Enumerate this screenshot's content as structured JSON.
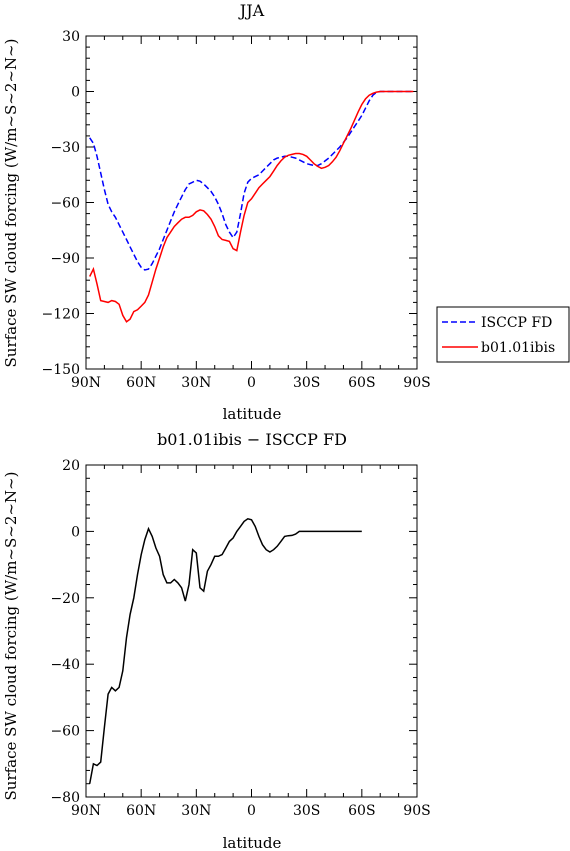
{
  "chart_data": [
    {
      "type": "line",
      "title": "JJA",
      "xlabel": "latitude",
      "ylabel": "Surface SW cloud forcing (W/m~S~2~N~)",
      "xlim": [
        90,
        -90
      ],
      "ylim": [
        -150,
        30
      ],
      "xticks": [
        90,
        60,
        30,
        0,
        -30,
        -60,
        -90
      ],
      "xtick_labels": [
        "90N",
        "60N",
        "30N",
        "0",
        "30S",
        "60S",
        "90S"
      ],
      "yticks": [
        30,
        0,
        -30,
        -60,
        -90,
        -120,
        -150
      ],
      "ytick_labels": [
        "30",
        "0",
        "−30",
        "−60",
        "−90",
        "−120",
        "−150"
      ],
      "legend": {
        "placement": "right-outside"
      },
      "series": [
        {
          "name": "ISCCP FD",
          "color": "#0000ff",
          "dash": "dashed",
          "points": [
            [
              88,
              -25
            ],
            [
              86,
              -28
            ],
            [
              84,
              -35
            ],
            [
              82,
              -44
            ],
            [
              80,
              -53
            ],
            [
              78,
              -61
            ],
            [
              76,
              -65
            ],
            [
              74,
              -68
            ],
            [
              72,
              -72
            ],
            [
              70,
              -76
            ],
            [
              68,
              -80
            ],
            [
              66,
              -84
            ],
            [
              64,
              -88
            ],
            [
              62,
              -92
            ],
            [
              60,
              -95
            ],
            [
              58,
              -96.5
            ],
            [
              56,
              -96
            ],
            [
              54,
              -93
            ],
            [
              52,
              -89
            ],
            [
              50,
              -85
            ],
            [
              48,
              -80
            ],
            [
              46,
              -75
            ],
            [
              44,
              -70
            ],
            [
              42,
              -65
            ],
            [
              40,
              -61
            ],
            [
              38,
              -57
            ],
            [
              36,
              -53
            ],
            [
              34,
              -50
            ],
            [
              32,
              -49
            ],
            [
              30,
              -48
            ],
            [
              28,
              -48.5
            ],
            [
              26,
              -50
            ],
            [
              24,
              -52
            ],
            [
              22,
              -54
            ],
            [
              20,
              -57
            ],
            [
              18,
              -61
            ],
            [
              16,
              -66
            ],
            [
              14,
              -72
            ],
            [
              12,
              -76
            ],
            [
              10,
              -79
            ],
            [
              8,
              -76
            ],
            [
              6,
              -66
            ],
            [
              4,
              -55
            ],
            [
              2,
              -49
            ],
            [
              0,
              -47
            ],
            [
              -2,
              -46
            ],
            [
              -4,
              -45
            ],
            [
              -6,
              -43
            ],
            [
              -8,
              -41
            ],
            [
              -10,
              -39
            ],
            [
              -12,
              -37
            ],
            [
              -14,
              -36
            ],
            [
              -16,
              -35.5
            ],
            [
              -18,
              -35
            ],
            [
              -20,
              -35
            ],
            [
              -22,
              -35.5
            ],
            [
              -24,
              -36
            ],
            [
              -26,
              -37
            ],
            [
              -28,
              -38
            ],
            [
              -30,
              -39
            ],
            [
              -32,
              -39.5
            ],
            [
              -34,
              -40
            ],
            [
              -36,
              -40
            ],
            [
              -38,
              -39
            ],
            [
              -40,
              -37.5
            ],
            [
              -42,
              -36
            ],
            [
              -44,
              -34
            ],
            [
              -46,
              -32
            ],
            [
              -48,
              -30
            ],
            [
              -50,
              -27.5
            ],
            [
              -52,
              -25
            ],
            [
              -54,
              -22
            ],
            [
              -56,
              -19
            ],
            [
              -58,
              -16
            ],
            [
              -60,
              -13
            ],
            [
              -62,
              -9
            ],
            [
              -64,
              -5
            ],
            [
              -66,
              -2
            ],
            [
              -68,
              -0.5
            ],
            [
              -70,
              0
            ],
            [
              -72,
              0
            ],
            [
              -76,
              0
            ],
            [
              -80,
              0
            ],
            [
              -84,
              0
            ],
            [
              -88,
              0
            ]
          ]
        },
        {
          "name": "b01.01ibis",
          "color": "#ff0000",
          "dash": "solid",
          "points": [
            [
              88,
              -100
            ],
            [
              86,
              -96
            ],
            [
              84,
              -104
            ],
            [
              82,
              -113
            ],
            [
              80,
              -113.5
            ],
            [
              78,
              -114
            ],
            [
              76,
              -113
            ],
            [
              74,
              -113.5
            ],
            [
              72,
              -115
            ],
            [
              70,
              -121
            ],
            [
              68,
              -124.5
            ],
            [
              66,
              -123
            ],
            [
              64,
              -119
            ],
            [
              62,
              -118
            ],
            [
              60,
              -116
            ],
            [
              58,
              -114
            ],
            [
              56,
              -110
            ],
            [
              54,
              -103
            ],
            [
              52,
              -96
            ],
            [
              50,
              -90
            ],
            [
              48,
              -84
            ],
            [
              46,
              -79
            ],
            [
              44,
              -76
            ],
            [
              42,
              -73
            ],
            [
              40,
              -71
            ],
            [
              38,
              -69
            ],
            [
              36,
              -68
            ],
            [
              34,
              -68
            ],
            [
              32,
              -67
            ],
            [
              30,
              -65
            ],
            [
              28,
              -64
            ],
            [
              26,
              -64.5
            ],
            [
              24,
              -66.5
            ],
            [
              22,
              -69
            ],
            [
              20,
              -73
            ],
            [
              18,
              -78
            ],
            [
              16,
              -80
            ],
            [
              14,
              -80.5
            ],
            [
              12,
              -81
            ],
            [
              10,
              -85
            ],
            [
              8,
              -86
            ],
            [
              6,
              -76
            ],
            [
              4,
              -67
            ],
            [
              2,
              -60
            ],
            [
              0,
              -58
            ],
            [
              -2,
              -55
            ],
            [
              -4,
              -52
            ],
            [
              -6,
              -50
            ],
            [
              -8,
              -48
            ],
            [
              -10,
              -46
            ],
            [
              -12,
              -43
            ],
            [
              -14,
              -40
            ],
            [
              -16,
              -37.5
            ],
            [
              -18,
              -35.5
            ],
            [
              -20,
              -34.5
            ],
            [
              -22,
              -34
            ],
            [
              -24,
              -33.5
            ],
            [
              -26,
              -33.5
            ],
            [
              -28,
              -34
            ],
            [
              -30,
              -35
            ],
            [
              -32,
              -37
            ],
            [
              -34,
              -39
            ],
            [
              -36,
              -40.5
            ],
            [
              -38,
              -41.5
            ],
            [
              -40,
              -41
            ],
            [
              -42,
              -40
            ],
            [
              -44,
              -38
            ],
            [
              -46,
              -35.5
            ],
            [
              -48,
              -32
            ],
            [
              -50,
              -28
            ],
            [
              -52,
              -24
            ],
            [
              -54,
              -20
            ],
            [
              -56,
              -15.5
            ],
            [
              -58,
              -11
            ],
            [
              -60,
              -7
            ],
            [
              -62,
              -4
            ],
            [
              -64,
              -2
            ],
            [
              -66,
              -1
            ],
            [
              -68,
              -0.3
            ],
            [
              -70,
              0
            ],
            [
              -72,
              0
            ],
            [
              -76,
              0
            ],
            [
              -80,
              0
            ],
            [
              -84,
              0
            ],
            [
              -88,
              0
            ]
          ]
        }
      ]
    },
    {
      "type": "line",
      "title": "b01.01ibis − ISCCP FD",
      "xlabel": "latitude",
      "ylabel": "Surface SW cloud forcing (W/m~S~2~N~)",
      "xlim": [
        90,
        -90
      ],
      "ylim": [
        -80,
        20
      ],
      "xticks": [
        90,
        60,
        30,
        0,
        -30,
        -60,
        -90
      ],
      "xtick_labels": [
        "90N",
        "60N",
        "30N",
        "0",
        "30S",
        "60S",
        "90S"
      ],
      "yticks": [
        20,
        0,
        -20,
        -40,
        -60,
        -80
      ],
      "ytick_labels": [
        "20",
        "0",
        "−20",
        "−40",
        "−60",
        "−80"
      ],
      "series": [
        {
          "color": "#000000",
          "dash": "solid",
          "points": [
            [
              88,
              -76
            ],
            [
              86,
              -70
            ],
            [
              84,
              -70.5
            ],
            [
              82,
              -69.5
            ],
            [
              80,
              -59
            ],
            [
              78,
              -49
            ],
            [
              76,
              -47
            ],
            [
              74,
              -48
            ],
            [
              72,
              -47
            ],
            [
              70,
              -42
            ],
            [
              68,
              -32
            ],
            [
              66,
              -25
            ],
            [
              64,
              -20
            ],
            [
              62,
              -13
            ],
            [
              60,
              -7
            ],
            [
              58,
              -2.5
            ],
            [
              56,
              0.8
            ],
            [
              54,
              -1.5
            ],
            [
              52,
              -5
            ],
            [
              50,
              -7.5
            ],
            [
              48,
              -13
            ],
            [
              46,
              -15.5
            ],
            [
              44,
              -15.5
            ],
            [
              42,
              -14.5
            ],
            [
              40,
              -15.5
            ],
            [
              38,
              -17
            ],
            [
              36,
              -21
            ],
            [
              34,
              -16
            ],
            [
              32,
              -5.5
            ],
            [
              30,
              -6.5
            ],
            [
              28,
              -17
            ],
            [
              26,
              -18
            ],
            [
              24,
              -12
            ],
            [
              22,
              -10
            ],
            [
              20,
              -7.5
            ],
            [
              18,
              -7.5
            ],
            [
              16,
              -7
            ],
            [
              14,
              -5
            ],
            [
              12,
              -3
            ],
            [
              10,
              -2
            ],
            [
              8,
              0
            ],
            [
              6,
              1.5
            ],
            [
              4,
              3
            ],
            [
              2,
              3.8
            ],
            [
              0,
              3.5
            ],
            [
              -2,
              1.5
            ],
            [
              -4,
              -1.5
            ],
            [
              -6,
              -4
            ],
            [
              -8,
              -5.5
            ],
            [
              -10,
              -6.2
            ],
            [
              -12,
              -5.5
            ],
            [
              -14,
              -4.5
            ],
            [
              -16,
              -3
            ],
            [
              -18,
              -1.5
            ],
            [
              -20,
              -1.3
            ],
            [
              -22,
              -1.2
            ],
            [
              -24,
              -0.8
            ],
            [
              -26,
              0
            ],
            [
              -28,
              0
            ],
            [
              -30,
              0
            ],
            [
              -40,
              0
            ],
            [
              -50,
              0
            ],
            [
              -60,
              0
            ]
          ]
        }
      ]
    }
  ]
}
